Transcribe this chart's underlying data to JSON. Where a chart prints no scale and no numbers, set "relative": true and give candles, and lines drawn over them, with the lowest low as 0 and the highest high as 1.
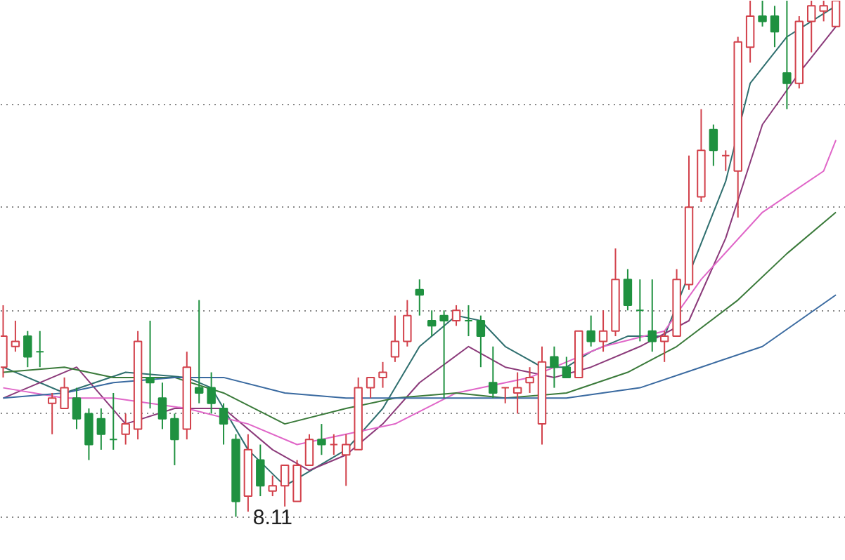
{
  "chart_data": {
    "type": "candlestick",
    "relative": true,
    "grid": "y",
    "categories": [
      null,
      null,
      null,
      null,
      null,
      null,
      null,
      null,
      null,
      null,
      null,
      null,
      null,
      null,
      null,
      null,
      null,
      null,
      null,
      null,
      null,
      null,
      null,
      null,
      null,
      null,
      null,
      null,
      null,
      null,
      null,
      null,
      null,
      null,
      null,
      null,
      null,
      null,
      null,
      null,
      null,
      null,
      null,
      null,
      null,
      null,
      null,
      null,
      null,
      null,
      null,
      null,
      null,
      null,
      null,
      null,
      null,
      null,
      null,
      null,
      null,
      null,
      null,
      null,
      null,
      null,
      null,
      null,
      null
    ],
    "ohlc": [
      [
        0.29,
        0.41,
        0.27,
        0.35
      ],
      [
        0.33,
        0.38,
        0.32,
        0.34
      ],
      [
        0.35,
        0.36,
        0.29,
        0.31
      ],
      [
        0.32,
        0.36,
        0.29,
        0.32
      ],
      [
        0.22,
        0.24,
        0.16,
        0.23
      ],
      [
        0.21,
        0.27,
        0.21,
        0.25
      ],
      [
        0.23,
        0.25,
        0.17,
        0.19
      ],
      [
        0.2,
        0.21,
        0.11,
        0.14
      ],
      [
        0.19,
        0.21,
        0.13,
        0.16
      ],
      [
        0.15,
        0.24,
        0.13,
        0.15
      ],
      [
        0.16,
        0.2,
        0.14,
        0.18
      ],
      [
        0.17,
        0.36,
        0.15,
        0.34
      ],
      [
        0.27,
        0.38,
        0.21,
        0.26
      ],
      [
        0.23,
        0.26,
        0.17,
        0.19
      ],
      [
        0.19,
        0.2,
        0.1,
        0.15
      ],
      [
        0.17,
        0.32,
        0.15,
        0.29
      ],
      [
        0.25,
        0.42,
        0.22,
        0.24
      ],
      [
        0.25,
        0.28,
        0.2,
        0.22
      ],
      [
        0.21,
        0.22,
        0.14,
        0.18
      ],
      [
        0.15,
        0.16,
        0,
        0.03
      ],
      [
        0.04,
        0.16,
        0.01,
        0.13
      ],
      [
        0.11,
        0.14,
        0.04,
        0.06
      ],
      [
        0.05,
        0.08,
        0.04,
        0.06
      ],
      [
        0.06,
        0.1,
        0.02,
        0.1
      ],
      [
        0.03,
        0.11,
        0.03,
        0.1
      ],
      [
        0.1,
        0.16,
        0.1,
        0.15
      ],
      [
        0.15,
        0.18,
        0.12,
        0.14
      ],
      [
        0.14,
        0.16,
        0.12,
        0.14
      ],
      [
        0.12,
        0.16,
        0.06,
        0.14
      ],
      [
        0.13,
        0.27,
        0.13,
        0.25
      ],
      [
        0.25,
        0.27,
        0.23,
        0.27
      ],
      [
        0.27,
        0.3,
        0.25,
        0.28
      ],
      [
        0.31,
        0.39,
        0.3,
        0.34
      ],
      [
        0.34,
        0.42,
        0.33,
        0.39
      ],
      [
        0.44,
        0.46,
        0.39,
        0.43
      ],
      [
        0.38,
        0.4,
        0.35,
        0.37
      ],
      [
        0.39,
        0.4,
        0.23,
        0.38
      ],
      [
        0.38,
        0.41,
        0.37,
        0.4
      ],
      [
        0.38,
        0.41,
        0.35,
        0.38
      ],
      [
        0.38,
        0.39,
        0.29,
        0.35
      ],
      [
        0.26,
        0.33,
        0.23,
        0.24
      ],
      [
        0.25,
        0.25,
        0.22,
        0.25
      ],
      [
        0.24,
        0.28,
        0.2,
        0.25
      ],
      [
        0.26,
        0.29,
        0.24,
        0.27
      ],
      [
        0.18,
        0.33,
        0.14,
        0.3
      ],
      [
        0.31,
        0.33,
        0.25,
        0.29
      ],
      [
        0.29,
        0.31,
        0.27,
        0.27
      ],
      [
        0.27,
        0.36,
        0.27,
        0.36
      ],
      [
        0.36,
        0.39,
        0.33,
        0.34
      ],
      [
        0.34,
        0.4,
        0.32,
        0.36
      ],
      [
        0.36,
        0.52,
        0.35,
        0.46
      ],
      [
        0.46,
        0.48,
        0.4,
        0.41
      ],
      [
        0.4,
        0.46,
        0.34,
        0.4
      ],
      [
        0.36,
        0.46,
        0.32,
        0.34
      ],
      [
        0.34,
        0.36,
        0.3,
        0.35
      ],
      [
        0.35,
        0.48,
        0.35,
        0.46
      ],
      [
        0.45,
        0.7,
        0.44,
        0.6
      ],
      [
        0.62,
        0.79,
        0.61,
        0.71
      ],
      [
        0.75,
        0.76,
        0.68,
        0.71
      ],
      [
        0.7,
        0.71,
        0.67,
        0.7
      ],
      [
        0.67,
        0.93,
        0.58,
        0.92
      ],
      [
        0.91,
        1.0,
        0.88,
        0.97
      ],
      [
        0.97,
        1.0,
        0.95,
        0.96
      ],
      [
        0.97,
        0.99,
        0.91,
        0.94
      ],
      [
        0.86,
        1.0,
        0.79,
        0.84
      ],
      [
        0.84,
        0.97,
        0.83,
        0.96
      ],
      [
        0.96,
        1.0,
        0.9,
        0.99
      ],
      [
        0.98,
        1.0,
        0.96,
        0.99
      ],
      [
        0.95,
        1.0,
        0.95,
        1.0
      ]
    ],
    "colors": [
      "#d2414b",
      "#d2414b",
      "#1f9140",
      "#1f9140",
      "#d2414b",
      "#d2414b",
      "#1f9140",
      "#1f9140",
      "#1f9140",
      "#1f9140",
      "#d2414b",
      "#d2414b",
      "#1f9140",
      "#1f9140",
      "#1f9140",
      "#d2414b",
      "#1f9140",
      "#1f9140",
      "#1f9140",
      "#1f9140",
      "#d2414b",
      "#1f9140",
      "#d2414b",
      "#d2414b",
      "#d2414b",
      "#d2414b",
      "#1f9140",
      "#d2414b",
      "#d2414b",
      "#d2414b",
      "#d2414b",
      "#d2414b",
      "#d2414b",
      "#d2414b",
      "#1f9140",
      "#1f9140",
      "#1f9140",
      "#d2414b",
      "#1f9140",
      "#1f9140",
      "#1f9140",
      "#d2414b",
      "#d2414b",
      "#d2414b",
      "#d2414b",
      "#1f9140",
      "#1f9140",
      "#d2414b",
      "#1f9140",
      "#d2414b",
      "#d2414b",
      "#1f9140",
      "#1f9140",
      "#1f9140",
      "#d2414b",
      "#d2414b",
      "#d2414b",
      "#d2414b",
      "#1f9140",
      "#d2414b",
      "#d2414b",
      "#d2414b",
      "#1f9140",
      "#1f9140",
      "#1f9140",
      "#d2414b",
      "#d2414b",
      "#d2414b",
      "#d2414b"
    ],
    "series": [
      {
        "type": "line",
        "color": "#2f6f6f",
        "values": [
          0.29,
          null,
          null,
          null,
          null,
          0.24,
          null,
          null,
          null,
          null,
          0.28,
          null,
          null,
          null,
          null,
          0.27,
          null,
          0.25,
          null,
          null,
          0.13,
          null,
          null,
          0.06,
          null,
          null,
          null,
          null,
          0.13,
          null,
          null,
          0.21,
          null,
          null,
          0.33,
          null,
          null,
          0.39,
          null,
          0.38,
          null,
          0.33,
          null,
          null,
          0.29,
          null,
          0.29,
          null,
          0.32,
          null,
          null,
          0.35,
          null,
          null,
          0.35,
          null,
          null,
          null,
          null,
          0.65,
          null,
          0.84,
          null,
          null,
          0.93,
          null,
          null,
          null,
          0.99
        ]
      },
      {
        "type": "line",
        "color": "#8b3a7a",
        "values": [
          0.23,
          null,
          null,
          null,
          null,
          null,
          0.29,
          null,
          null,
          null,
          0.18,
          null,
          null,
          null,
          0.21,
          null,
          null,
          null,
          0.21,
          null,
          null,
          null,
          0.13,
          null,
          null,
          0.09,
          null,
          null,
          0.12,
          null,
          null,
          0.18,
          null,
          null,
          0.26,
          null,
          null,
          null,
          0.33,
          null,
          null,
          0.29,
          null,
          null,
          null,
          0.27,
          null,
          null,
          0.29,
          null,
          null,
          null,
          0.33,
          null,
          null,
          null,
          0.38,
          null,
          null,
          0.54,
          null,
          null,
          0.76,
          null,
          null,
          0.86,
          null,
          null,
          0.95
        ]
      },
      {
        "type": "line",
        "color": "#e066c8",
        "values": [
          0.25,
          null,
          null,
          null,
          null,
          0.23,
          null,
          null,
          null,
          0.23,
          null,
          null,
          null,
          null,
          null,
          0.21,
          null,
          null,
          null,
          null,
          0.18,
          null,
          null,
          null,
          0.14,
          null,
          null,
          null,
          0.16,
          null,
          null,
          null,
          0.18,
          null,
          null,
          null,
          null,
          0.24,
          null,
          null,
          null,
          null,
          null,
          0.27,
          null,
          null,
          0.3,
          null,
          null,
          0.33,
          null,
          null,
          null,
          null,
          0.36,
          null,
          null,
          0.46,
          null,
          null,
          null,
          null,
          0.59,
          null,
          null,
          null,
          null,
          0.67,
          0.73
        ]
      },
      {
        "type": "line",
        "color": "#3a7a3a",
        "values": [
          0.28,
          null,
          null,
          null,
          null,
          0.29,
          null,
          null,
          null,
          0.27,
          null,
          null,
          null,
          null,
          0.27,
          null,
          null,
          null,
          0.24,
          null,
          null,
          null,
          null,
          0.18,
          null,
          null,
          null,
          null,
          0.21,
          null,
          null,
          null,
          0.23,
          null,
          null,
          null,
          null,
          0.24,
          null,
          null,
          null,
          0.23,
          null,
          null,
          null,
          null,
          0.24,
          null,
          null,
          null,
          null,
          0.28,
          null,
          null,
          null,
          0.33,
          null,
          null,
          null,
          null,
          0.42,
          null,
          null,
          null,
          0.51,
          null,
          null,
          null,
          0.59
        ]
      },
      {
        "type": "line",
        "color": "#3a6aa0",
        "values": [
          0.23,
          null,
          null,
          null,
          null,
          0.24,
          null,
          null,
          null,
          0.26,
          null,
          null,
          null,
          null,
          0.27,
          null,
          null,
          null,
          0.27,
          null,
          null,
          null,
          null,
          0.24,
          null,
          null,
          null,
          null,
          0.23,
          null,
          null,
          null,
          0.23,
          null,
          null,
          null,
          null,
          0.23,
          null,
          null,
          null,
          0.23,
          null,
          null,
          null,
          null,
          0.23,
          null,
          null,
          null,
          null,
          null,
          0.25,
          null,
          null,
          null,
          null,
          0.29,
          null,
          null,
          null,
          null,
          0.33,
          null,
          null,
          null,
          null,
          null,
          0.43
        ]
      }
    ],
    "annotations": [
      "8.11"
    ]
  }
}
